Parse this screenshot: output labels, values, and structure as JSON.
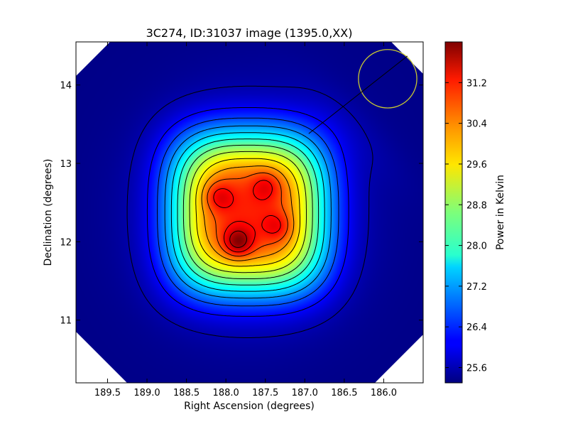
{
  "chart_data": {
    "type": "heatmap",
    "title": "3C274, ID:31037 image (1395.0,XX)",
    "xlabel": "Right Ascension (degrees)",
    "ylabel": "Declination (degrees)",
    "xlim": [
      189.9,
      185.5
    ],
    "ylim": [
      10.2,
      14.55
    ],
    "x_axis_inverted": true,
    "xticks": [
      "189.5",
      "189.0",
      "188.5",
      "188.0",
      "187.5",
      "187.0",
      "186.5",
      "186.0"
    ],
    "xtick_values": [
      189.5,
      189.0,
      188.5,
      188.0,
      187.5,
      187.0,
      186.5,
      186.0
    ],
    "yticks": [
      "11",
      "12",
      "13",
      "14"
    ],
    "ytick_values": [
      11,
      12,
      13,
      14
    ],
    "colormap": "jet",
    "colorbar": {
      "label": "Power in Kelvin",
      "min": 25.3,
      "max": 32.0,
      "ticks": [
        "25.6",
        "26.4",
        "27.2",
        "28.0",
        "28.8",
        "29.6",
        "30.4",
        "31.2"
      ],
      "tick_values": [
        25.6,
        26.4,
        27.2,
        28.0,
        28.8,
        29.6,
        30.4,
        31.2
      ]
    },
    "background_level": 25.35,
    "peaks": [
      {
        "ra": 187.85,
        "dec": 12.0,
        "value": 31.9
      },
      {
        "ra": 188.1,
        "dec": 12.58,
        "value": 31.3
      },
      {
        "ra": 187.5,
        "dec": 12.72,
        "value": 31.2
      },
      {
        "ra": 187.35,
        "dec": 12.2,
        "value": 31.2
      }
    ],
    "source_circle": {
      "ra": 185.95,
      "dec": 14.08,
      "radius_deg": 0.37,
      "color": "#c8c832"
    },
    "contour_levels": 13,
    "grid": false
  },
  "colors": {
    "contour": "#000000",
    "background": "#ffffff"
  }
}
